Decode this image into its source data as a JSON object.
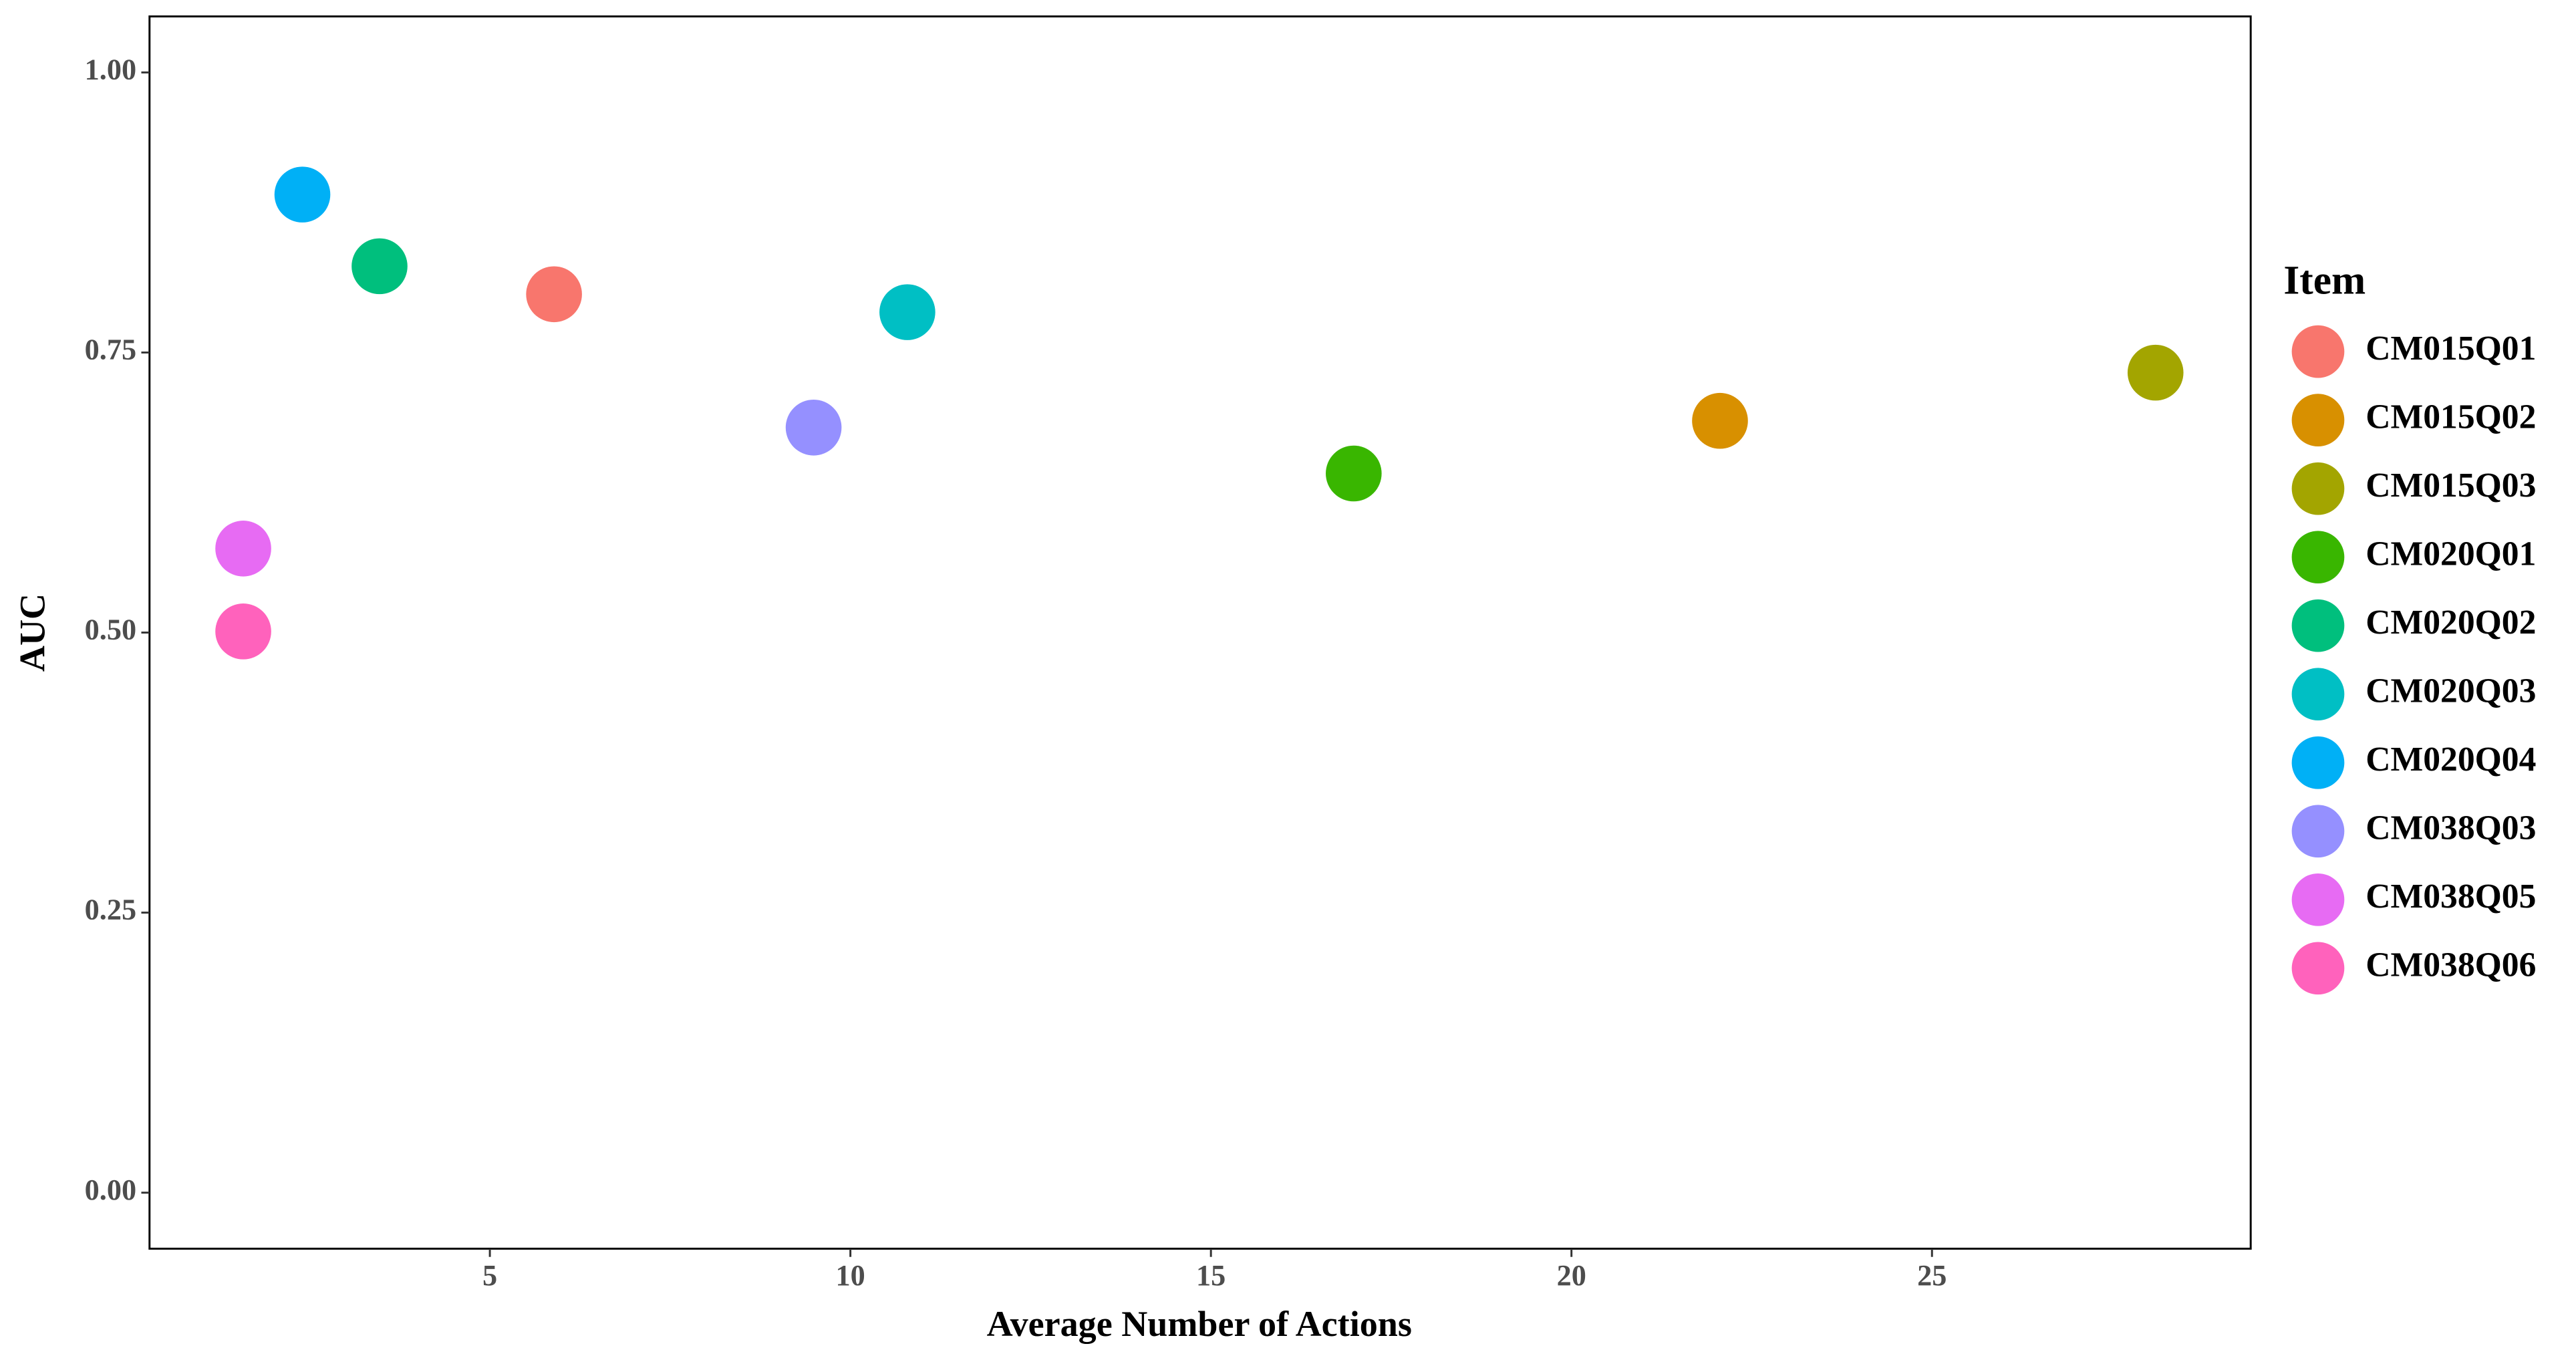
{
  "chart_data": {
    "type": "scatter",
    "xlabel": "Average Number of Actions",
    "ylabel": "AUC",
    "legend_title": "Item",
    "legend": "right",
    "xlim": [
      0.28,
      29.42
    ],
    "xticks": [
      5,
      10,
      15,
      20,
      25
    ],
    "ylim": [
      -0.05,
      1.05
    ],
    "yticks": [
      {
        "value": 0,
        "label": "0.00"
      },
      {
        "value": 0.25,
        "label": "0.25"
      },
      {
        "value": 0.5,
        "label": "0.50"
      },
      {
        "value": 0.75,
        "label": "0.75"
      },
      {
        "value": 1,
        "label": "1.00"
      }
    ],
    "grid": false,
    "series": [
      {
        "name": "CM015Q01",
        "color": "#F8766D",
        "x": [
          5.89
        ],
        "values": [
          0.802
        ]
      },
      {
        "name": "CM015Q02",
        "color": "#D89000",
        "x": [
          22.06
        ],
        "values": [
          0.689
        ]
      },
      {
        "name": "CM015Q03",
        "color": "#A3A500",
        "x": [
          28.1
        ],
        "values": [
          0.732
        ]
      },
      {
        "name": "CM020Q01",
        "color": "#39B600",
        "x": [
          16.98
        ],
        "values": [
          0.642
        ]
      },
      {
        "name": "CM020Q02",
        "color": "#00BF7D",
        "x": [
          3.47
        ],
        "values": [
          0.827
        ]
      },
      {
        "name": "CM020Q03",
        "color": "#00BFC4",
        "x": [
          10.79
        ],
        "values": [
          0.786
        ]
      },
      {
        "name": "CM020Q04",
        "color": "#00B0F6",
        "x": [
          2.4
        ],
        "values": [
          0.891
        ]
      },
      {
        "name": "CM038Q03",
        "color": "#9590FF",
        "x": [
          9.49
        ],
        "values": [
          0.683
        ]
      },
      {
        "name": "CM038Q05",
        "color": "#E76BF3",
        "x": [
          1.58
        ],
        "values": [
          0.575
        ]
      },
      {
        "name": "CM038Q06",
        "color": "#FF62BC",
        "x": [
          1.58
        ],
        "values": [
          0.501
        ]
      }
    ]
  }
}
